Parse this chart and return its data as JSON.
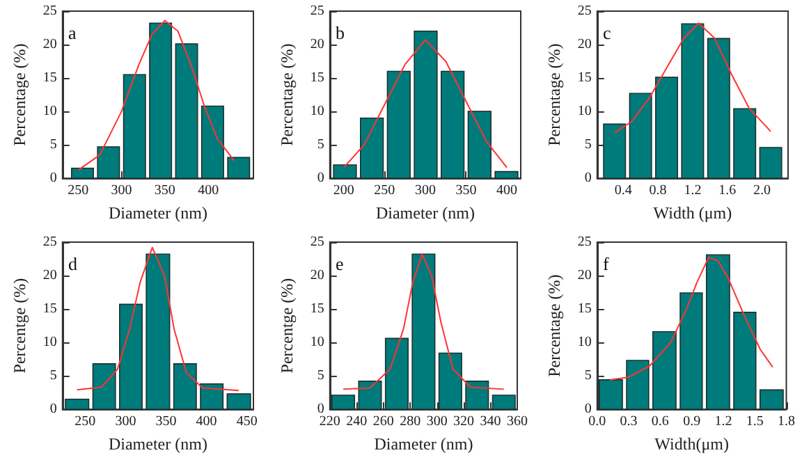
{
  "chart_data": [
    {
      "type": "histogram",
      "title": "a",
      "xlabel": "Diameter (nm)",
      "ylabel": "Percentage (%)",
      "color": "#007b7b",
      "bins": [
        240,
        270,
        300,
        330,
        360,
        390,
        420,
        450
      ],
      "values": [
        1.5,
        4.7,
        15.5,
        23.2,
        20.1,
        10.8,
        3.1
      ],
      "xlim": [
        232,
        452
      ],
      "xticks": [
        250,
        300,
        350,
        400
      ],
      "ylim": [
        0,
        25
      ],
      "yticks": [
        0,
        5,
        10,
        15,
        20,
        25
      ],
      "grid": false,
      "series": [
        {
          "type": "line",
          "color": "#ff3333",
          "x": [
            250,
            275,
            300,
            320,
            335,
            350,
            365,
            380,
            395,
            410,
            430
          ],
          "values": [
            1.2,
            3.5,
            10,
            17,
            21.5,
            23.6,
            22,
            17,
            11,
            6,
            2.6
          ]
        }
      ]
    },
    {
      "type": "histogram",
      "title": "b",
      "xlabel": "Diameter (nm)",
      "ylabel": "Percentage (%)",
      "color": "#007b7b",
      "bins": [
        185,
        218,
        251,
        284,
        317,
        350,
        383,
        416
      ],
      "values": [
        2,
        9,
        16,
        22,
        16,
        10,
        1
      ],
      "xlim": [
        183,
        417
      ],
      "xticks": [
        200,
        250,
        300,
        350,
        400
      ],
      "ylim": [
        0,
        25
      ],
      "yticks": [
        0,
        5,
        10,
        15,
        20,
        25
      ],
      "grid": false,
      "series": [
        {
          "type": "line",
          "color": "#ff3333",
          "x": [
            200,
            225,
            250,
            275,
            300,
            325,
            350,
            375,
            400
          ],
          "values": [
            1.6,
            5,
            11,
            17,
            20.7,
            17.5,
            11.5,
            5.5,
            1.6
          ]
        }
      ]
    },
    {
      "type": "histogram",
      "title": "c",
      "xlabel": "Width (μm)",
      "ylabel": "Percentage (%)",
      "color": "#007b7b",
      "bins": [
        0.15,
        0.45,
        0.75,
        1.05,
        1.35,
        1.65,
        1.95,
        2.25
      ],
      "values": [
        8.1,
        12.7,
        15.1,
        23.1,
        20.9,
        10.4,
        4.6
      ],
      "xlim": [
        0.1,
        2.3
      ],
      "xticks": [
        0.4,
        0.8,
        1.2,
        1.6,
        {
          "value": 2,
          "label": "2.0"
        }
      ],
      "ylim": [
        0,
        25
      ],
      "yticks": [
        0,
        5,
        10,
        15,
        20,
        25
      ],
      "grid": false,
      "series": [
        {
          "type": "line",
          "color": "#ff3333",
          "x": [
            0.3,
            0.5,
            0.7,
            0.9,
            1.1,
            1.27,
            1.45,
            1.65,
            1.85,
            2.1
          ],
          "values": [
            6.8,
            8.5,
            12,
            16.5,
            21,
            23.2,
            21,
            15.5,
            10.5,
            7
          ]
        }
      ]
    },
    {
      "type": "histogram",
      "title": "d",
      "xlabel": "Diameter (nm)",
      "ylabel": "Percentge (%)",
      "color": "#007b7b",
      "bins": [
        223,
        257,
        290,
        323,
        357,
        390,
        423,
        457
      ],
      "values": [
        1.5,
        6.8,
        15.7,
        23.2,
        6.8,
        3.8,
        2.3
      ],
      "xlim": [
        222,
        458
      ],
      "xticks": [
        250,
        300,
        350,
        400,
        450
      ],
      "ylim": [
        0,
        25
      ],
      "yticks": [
        0,
        5,
        10,
        15,
        20,
        25
      ],
      "grid": false,
      "series": [
        {
          "type": "line",
          "color": "#ff3333",
          "x": [
            240,
            270,
            290,
            305,
            318,
            333,
            348,
            360,
            375,
            395,
            440
          ],
          "values": [
            2.9,
            3.3,
            6,
            12,
            19,
            24.2,
            20,
            12,
            5.5,
            3.2,
            2.8
          ]
        }
      ]
    },
    {
      "type": "histogram",
      "title": "e",
      "xlabel": "Diameter (nm)",
      "ylabel": "Percentge (%)",
      "color": "#007b7b",
      "bins": [
        220,
        240,
        260,
        280,
        300,
        320,
        340,
        360
      ],
      "values": [
        2.1,
        4.2,
        10.6,
        23.2,
        8.4,
        4.2,
        2.1
      ],
      "xlim": [
        220,
        360
      ],
      "xticks": [
        220,
        240,
        260,
        280,
        300,
        320,
        340,
        360
      ],
      "ylim": [
        0,
        25
      ],
      "yticks": [
        0,
        5,
        10,
        15,
        20,
        25
      ],
      "grid": false,
      "series": [
        {
          "type": "line",
          "color": "#ff3333",
          "x": [
            230,
            250,
            265,
            275,
            282,
            289,
            296,
            303,
            312,
            325,
            350
          ],
          "values": [
            3,
            3.2,
            6,
            12,
            19,
            23.2,
            20,
            13,
            6,
            3.3,
            3
          ]
        }
      ]
    },
    {
      "type": "histogram",
      "title": "f",
      "xlabel": "Width(μm)",
      "ylabel": "Percentage (%)",
      "color": "#007b7b",
      "bins": [
        0,
        0.26,
        0.51,
        0.77,
        1.02,
        1.28,
        1.53,
        1.79
      ],
      "values": [
        4.4,
        7.3,
        11.6,
        17.4,
        23.1,
        14.5,
        2.9
      ],
      "xlim": [
        0,
        1.8
      ],
      "xticks": [
        {
          "value": 0,
          "label": "0.0"
        },
        0.3,
        0.6,
        0.9,
        1.2,
        1.5,
        1.8
      ],
      "ylim": [
        0,
        25
      ],
      "yticks": [
        0,
        5,
        10,
        15,
        20,
        25
      ],
      "grid": false,
      "series": [
        {
          "type": "line",
          "color": "#ff3333",
          "x": [
            0.12,
            0.3,
            0.5,
            0.7,
            0.85,
            0.95,
            1.06,
            1.15,
            1.25,
            1.4,
            1.55,
            1.67
          ],
          "values": [
            4.4,
            4.8,
            6.5,
            10,
            15,
            19,
            22.7,
            22.2,
            19.5,
            14,
            9,
            6.3
          ]
        }
      ]
    }
  ]
}
